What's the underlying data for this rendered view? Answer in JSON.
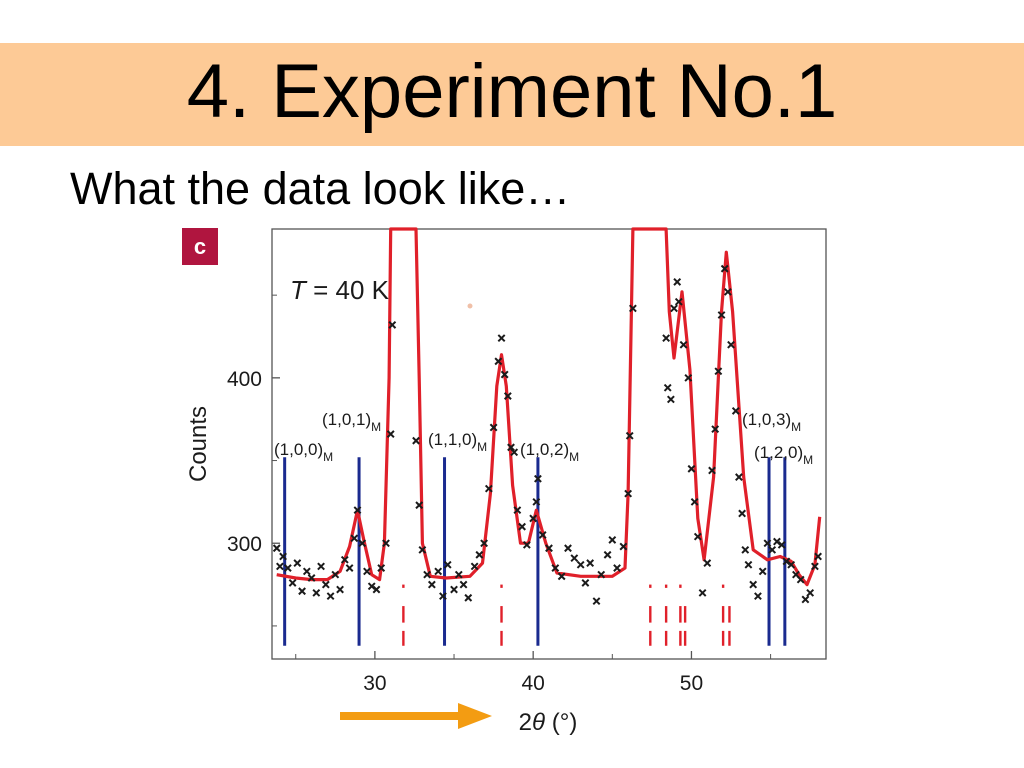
{
  "slide": {
    "title": "4. Experiment No.1",
    "subtitle": "What the data look like…"
  },
  "figure": {
    "panel_label": "c",
    "temperature": {
      "symbol": "T",
      "text": " = 40 K"
    }
  },
  "colors": {
    "title_band": "#fdca96",
    "badge": "#b0153f",
    "fit": "#e0202a",
    "reflection_lines": "#1a2a8f",
    "tick_marks": "#e0202a",
    "points": "#1b1b1b",
    "arrow": "#f39c12"
  },
  "chart_data": {
    "type": "scatter",
    "xlabel": {
      "prefix": "2",
      "symbol": "θ",
      "suffix": " (°)"
    },
    "ylabel": "Counts",
    "xlim": [
      23.5,
      58.5
    ],
    "ylim": [
      230,
      490
    ],
    "xticks": [
      30,
      40,
      50
    ],
    "yticks": [
      300,
      400
    ],
    "reflections": [
      {
        "label": "(1,0,0)",
        "sub": "M",
        "x": 24.3
      },
      {
        "label": "(1,0,1)",
        "sub": "M",
        "x": 29.0
      },
      {
        "label": "(1,1,0)",
        "sub": "M",
        "x": 34.4
      },
      {
        "label": "(1,0,2)",
        "sub": "M",
        "x": 40.3
      },
      {
        "label": "(1,0,3)",
        "sub": "M",
        "x": 54.9
      },
      {
        "label": "(1,2,0)",
        "sub": "M",
        "x": 55.9
      }
    ],
    "tick_groups": [
      {
        "x": 31.8,
        "rows": [
          1,
          2,
          3
        ]
      },
      {
        "x": 38.0,
        "rows": [
          1,
          2,
          3
        ]
      },
      {
        "x": 47.4,
        "rows": [
          1,
          2,
          3
        ]
      },
      {
        "x": 48.4,
        "rows": [
          1,
          2,
          3
        ]
      },
      {
        "x": 49.3,
        "rows": [
          1,
          2,
          3
        ]
      },
      {
        "x": 49.6,
        "rows": [
          2,
          3
        ]
      },
      {
        "x": 52.0,
        "rows": [
          1,
          2,
          3
        ]
      },
      {
        "x": 52.4,
        "rows": [
          2,
          3
        ]
      }
    ],
    "fit": [
      [
        23.8,
        281
      ],
      [
        25,
        279
      ],
      [
        26,
        278
      ],
      [
        27,
        278
      ],
      [
        27.8,
        283
      ],
      [
        28.4,
        298
      ],
      [
        28.9,
        320
      ],
      [
        29.3,
        302
      ],
      [
        29.8,
        281
      ],
      [
        30.3,
        278
      ],
      [
        30.6,
        300
      ],
      [
        30.9,
        400
      ],
      [
        31.0,
        490
      ],
      [
        32.6,
        490
      ],
      [
        32.8,
        400
      ],
      [
        33.0,
        300
      ],
      [
        33.5,
        280
      ],
      [
        34.5,
        279
      ],
      [
        36.0,
        280
      ],
      [
        36.8,
        288
      ],
      [
        37.3,
        330
      ],
      [
        37.7,
        395
      ],
      [
        38.0,
        414
      ],
      [
        38.3,
        395
      ],
      [
        38.7,
        335
      ],
      [
        39.2,
        300
      ],
      [
        39.7,
        300
      ],
      [
        40.2,
        320
      ],
      [
        40.8,
        300
      ],
      [
        41.5,
        282
      ],
      [
        43.0,
        280
      ],
      [
        45.0,
        280
      ],
      [
        45.8,
        285
      ],
      [
        46.0,
        330
      ],
      [
        46.3,
        490
      ],
      [
        48.4,
        490
      ],
      [
        48.6,
        440
      ],
      [
        48.9,
        412
      ],
      [
        49.4,
        452
      ],
      [
        49.9,
        405
      ],
      [
        50.4,
        315
      ],
      [
        50.8,
        290
      ],
      [
        51.4,
        340
      ],
      [
        51.9,
        440
      ],
      [
        52.2,
        476
      ],
      [
        52.6,
        440
      ],
      [
        53.3,
        340
      ],
      [
        53.9,
        296
      ],
      [
        54.8,
        290
      ],
      [
        55.6,
        292
      ],
      [
        56.3,
        289
      ],
      [
        56.8,
        281
      ],
      [
        57.3,
        275
      ],
      [
        57.8,
        287
      ],
      [
        58.1,
        316
      ]
    ],
    "points": [
      [
        23.8,
        297
      ],
      [
        24.0,
        286
      ],
      [
        24.2,
        292
      ],
      [
        24.5,
        285
      ],
      [
        24.8,
        276
      ],
      [
        25.1,
        288
      ],
      [
        25.4,
        271
      ],
      [
        25.7,
        283
      ],
      [
        26.0,
        279
      ],
      [
        26.3,
        270
      ],
      [
        26.6,
        286
      ],
      [
        26.9,
        275
      ],
      [
        27.2,
        268
      ],
      [
        27.5,
        281
      ],
      [
        27.8,
        272
      ],
      [
        28.1,
        290
      ],
      [
        28.4,
        285
      ],
      [
        28.7,
        303
      ],
      [
        28.9,
        320
      ],
      [
        29.2,
        300
      ],
      [
        29.5,
        283
      ],
      [
        29.8,
        274
      ],
      [
        30.1,
        272
      ],
      [
        30.4,
        285
      ],
      [
        30.7,
        300
      ],
      [
        31.0,
        366
      ],
      [
        31.1,
        432
      ],
      [
        32.6,
        362
      ],
      [
        32.8,
        323
      ],
      [
        33.0,
        296
      ],
      [
        33.3,
        281
      ],
      [
        33.6,
        275
      ],
      [
        34.0,
        283
      ],
      [
        34.3,
        268
      ],
      [
        34.6,
        287
      ],
      [
        35.0,
        272
      ],
      [
        35.3,
        281
      ],
      [
        35.6,
        275
      ],
      [
        35.9,
        267
      ],
      [
        36.3,
        286
      ],
      [
        36.6,
        293
      ],
      [
        36.9,
        300
      ],
      [
        37.2,
        333
      ],
      [
        37.5,
        370
      ],
      [
        37.8,
        410
      ],
      [
        38.0,
        424
      ],
      [
        38.2,
        402
      ],
      [
        38.4,
        389
      ],
      [
        38.6,
        358
      ],
      [
        38.8,
        355
      ],
      [
        39.0,
        320
      ],
      [
        39.3,
        310
      ],
      [
        39.6,
        299
      ],
      [
        40.0,
        315
      ],
      [
        40.2,
        325
      ],
      [
        40.3,
        339
      ],
      [
        40.6,
        305
      ],
      [
        41.0,
        297
      ],
      [
        41.4,
        285
      ],
      [
        41.8,
        280
      ],
      [
        42.2,
        297
      ],
      [
        42.6,
        291
      ],
      [
        43.0,
        287
      ],
      [
        43.3,
        276
      ],
      [
        43.6,
        288
      ],
      [
        44.0,
        265
      ],
      [
        44.3,
        281
      ],
      [
        44.7,
        293
      ],
      [
        45.0,
        302
      ],
      [
        45.3,
        285
      ],
      [
        45.7,
        298
      ],
      [
        46.0,
        330
      ],
      [
        46.1,
        365
      ],
      [
        46.3,
        442
      ],
      [
        48.4,
        424
      ],
      [
        48.5,
        394
      ],
      [
        48.7,
        387
      ],
      [
        48.9,
        442
      ],
      [
        49.1,
        458
      ],
      [
        49.2,
        446
      ],
      [
        49.5,
        420
      ],
      [
        49.8,
        400
      ],
      [
        50.0,
        345
      ],
      [
        50.2,
        325
      ],
      [
        50.4,
        304
      ],
      [
        50.7,
        270
      ],
      [
        51.0,
        288
      ],
      [
        51.3,
        344
      ],
      [
        51.5,
        369
      ],
      [
        51.7,
        404
      ],
      [
        51.9,
        438
      ],
      [
        52.1,
        466
      ],
      [
        52.3,
        452
      ],
      [
        52.5,
        420
      ],
      [
        52.8,
        380
      ],
      [
        53.0,
        340
      ],
      [
        53.2,
        318
      ],
      [
        53.4,
        296
      ],
      [
        53.6,
        287
      ],
      [
        53.9,
        275
      ],
      [
        54.2,
        268
      ],
      [
        54.5,
        283
      ],
      [
        54.8,
        300
      ],
      [
        55.1,
        296
      ],
      [
        55.4,
        301
      ],
      [
        55.7,
        299
      ],
      [
        56.0,
        289
      ],
      [
        56.3,
        287
      ],
      [
        56.6,
        281
      ],
      [
        56.9,
        278
      ],
      [
        57.2,
        266
      ],
      [
        57.5,
        270
      ],
      [
        57.8,
        286
      ],
      [
        58.0,
        292
      ]
    ],
    "grid": false,
    "legend": "none"
  }
}
